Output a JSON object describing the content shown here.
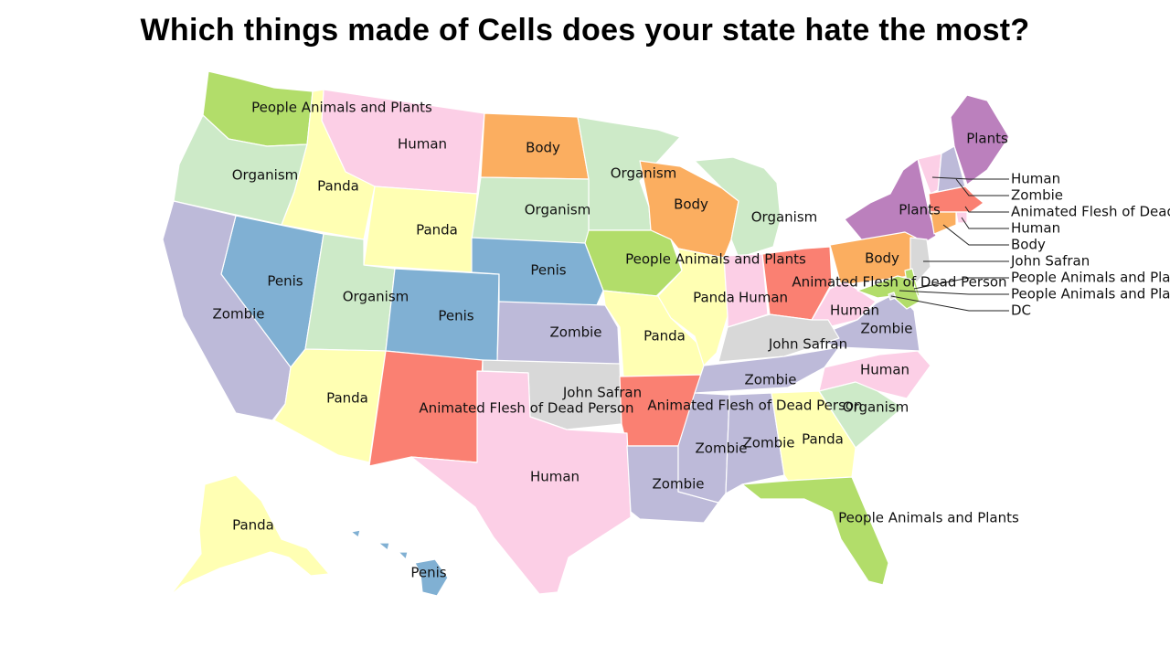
{
  "title": "Which things made of Cells does your state hate the most?",
  "colors": {
    "People Animals and Plants": "#b2dd6a",
    "Human": "#fccfe6",
    "Body": "#fbae60",
    "Organism": "#cdeac8",
    "Panda": "#ffffb3",
    "Zombie": "#bdbad9",
    "Penis": "#80b0d3",
    "Animated Flesh of Dead Person": "#fa8072",
    "John Safran": "#d8d8d8",
    "Plants": "#bb80bd",
    "DC": "#d8d8d8"
  },
  "states": [
    {
      "name": "Washington",
      "value": "People Animals and Plants"
    },
    {
      "name": "Montana",
      "value": "Human"
    },
    {
      "name": "North Dakota",
      "value": "Body"
    },
    {
      "name": "Minnesota",
      "value": "Organism"
    },
    {
      "name": "Wisconsin",
      "value": "Body"
    },
    {
      "name": "Michigan",
      "value": "Organism"
    },
    {
      "name": "Maine",
      "value": "Plants"
    },
    {
      "name": "Oregon",
      "value": "Organism"
    },
    {
      "name": "Idaho",
      "value": "Panda"
    },
    {
      "name": "Wyoming",
      "value": "Panda"
    },
    {
      "name": "South Dakota",
      "value": "Organism"
    },
    {
      "name": "Iowa",
      "value": "People Animals and Plants"
    },
    {
      "name": "New York",
      "value": "Plants"
    },
    {
      "name": "Nevada",
      "value": "Penis"
    },
    {
      "name": "Utah",
      "value": "Organism"
    },
    {
      "name": "Colorado",
      "value": "Penis"
    },
    {
      "name": "Nebraska",
      "value": "Penis"
    },
    {
      "name": "California",
      "value": "Zombie"
    },
    {
      "name": "Kansas",
      "value": "Zombie"
    },
    {
      "name": "Missouri",
      "value": "Panda"
    },
    {
      "name": "Illinois",
      "value": "Panda"
    },
    {
      "name": "Indiana",
      "value": "Human"
    },
    {
      "name": "Ohio",
      "value": "Animated Flesh of Dead Person"
    },
    {
      "name": "Pennsylvania",
      "value": "Body"
    },
    {
      "name": "West Virginia",
      "value": "Human"
    },
    {
      "name": "Virginia",
      "value": "Zombie"
    },
    {
      "name": "Kentucky",
      "value": "John Safran"
    },
    {
      "name": "Arizona",
      "value": "Panda"
    },
    {
      "name": "New Mexico",
      "value": "Animated Flesh of Dead Person"
    },
    {
      "name": "Oklahoma",
      "value": "John Safran"
    },
    {
      "name": "Arkansas",
      "value": "Animated Flesh of Dead Person"
    },
    {
      "name": "Tennessee",
      "value": "Zombie"
    },
    {
      "name": "North Carolina",
      "value": "Human"
    },
    {
      "name": "South Carolina",
      "value": "Organism"
    },
    {
      "name": "Texas",
      "value": "Human"
    },
    {
      "name": "Louisiana",
      "value": "Zombie"
    },
    {
      "name": "Mississippi",
      "value": "Zombie"
    },
    {
      "name": "Alabama",
      "value": "Zombie"
    },
    {
      "name": "Georgia",
      "value": "Panda"
    },
    {
      "name": "Florida",
      "value": "People Animals and Plants"
    },
    {
      "name": "Alaska",
      "value": "Panda"
    },
    {
      "name": "Hawaii",
      "value": "Penis"
    },
    {
      "name": "Vermont",
      "value": "Human"
    },
    {
      "name": "New Hampshire",
      "value": "Zombie"
    },
    {
      "name": "Massachusetts",
      "value": "Animated Flesh of Dead Person"
    },
    {
      "name": "Rhode Island",
      "value": "Human"
    },
    {
      "name": "Connecticut",
      "value": "Body"
    },
    {
      "name": "New Jersey",
      "value": "John Safran"
    },
    {
      "name": "Delaware",
      "value": "People Animals and Plants"
    },
    {
      "name": "Maryland",
      "value": "People Animals and Plants"
    },
    {
      "name": "District of Columbia",
      "value": "DC"
    }
  ],
  "callouts": [
    {
      "state": "Vermont",
      "text": "Human"
    },
    {
      "state": "New Hampshire",
      "text": "Zombie"
    },
    {
      "state": "Massachusetts",
      "text": "Animated Flesh of Dead Person"
    },
    {
      "state": "Rhode Island",
      "text": "Human"
    },
    {
      "state": "Connecticut",
      "text": "Body"
    },
    {
      "state": "New Jersey",
      "text": "John Safran"
    },
    {
      "state": "Delaware",
      "text": "People Animals and Plants"
    },
    {
      "state": "Maryland",
      "text": "People Animals and Plants"
    },
    {
      "state": "District of Columbia",
      "text": "DC"
    }
  ]
}
